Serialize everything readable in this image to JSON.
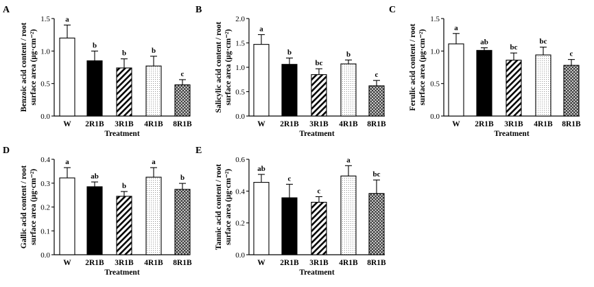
{
  "chart_data": [
    {
      "type": "bar",
      "panel": "A",
      "categories": [
        "W",
        "2R1B",
        "3R1B",
        "4R1B",
        "8R1B"
      ],
      "values": [
        1.2,
        0.85,
        0.74,
        0.77,
        0.48
      ],
      "errors": [
        0.2,
        0.15,
        0.14,
        0.15,
        0.08
      ],
      "significance": [
        "a",
        "b",
        "b",
        "b",
        "c"
      ],
      "ylabel_line1": "Benzoic acid content / root",
      "ylabel_line2": "surface area (µg·cm⁻²)",
      "xlabel": "Treatment",
      "ylim": [
        0,
        1.5
      ],
      "yticks": [
        "0.0",
        "0.5",
        "1.0",
        "1.5"
      ]
    },
    {
      "type": "bar",
      "panel": "B",
      "categories": [
        "W",
        "2R1B",
        "3R1B",
        "4R1B",
        "8R1B"
      ],
      "values": [
        1.47,
        1.06,
        0.85,
        1.07,
        0.62
      ],
      "errors": [
        0.2,
        0.13,
        0.12,
        0.08,
        0.11
      ],
      "significance": [
        "a",
        "b",
        "bc",
        "b",
        "c"
      ],
      "ylabel_line1": "Salicylic acid content / root",
      "ylabel_line2": "surface area (µg·cm⁻²)",
      "xlabel": "Treatment",
      "ylim": [
        0,
        2.0
      ],
      "yticks": [
        "0.0",
        "0.5",
        "1.0",
        "1.5",
        "2.0"
      ]
    },
    {
      "type": "bar",
      "panel": "C",
      "categories": [
        "W",
        "2R1B",
        "3R1B",
        "4R1B",
        "8R1B"
      ],
      "values": [
        1.11,
        1.01,
        0.86,
        0.94,
        0.78
      ],
      "errors": [
        0.16,
        0.04,
        0.11,
        0.12,
        0.09
      ],
      "significance": [
        "a",
        "ab",
        "bc",
        "bc",
        "c"
      ],
      "ylabel_line1": "Ferulic acid content / root",
      "ylabel_line2": "surface area (µg·cm⁻²)",
      "xlabel": "Treatment",
      "ylim": [
        0,
        1.5
      ],
      "yticks": [
        "0.0",
        "0.5",
        "1.0",
        "1.5"
      ]
    },
    {
      "type": "bar",
      "panel": "D",
      "categories": [
        "W",
        "2R1B",
        "3R1B",
        "4R1B",
        "8R1B"
      ],
      "values": [
        0.322,
        0.285,
        0.245,
        0.325,
        0.274
      ],
      "errors": [
        0.043,
        0.02,
        0.02,
        0.04,
        0.025
      ],
      "significance": [
        "a",
        "ab",
        "b",
        "a",
        "b"
      ],
      "ylabel_line1": "Gallic acid content / root",
      "ylabel_line2": "surface area (µg·cm⁻²)",
      "xlabel": "Treatment",
      "ylim": [
        0,
        0.4
      ],
      "yticks": [
        "0.0",
        "0.1",
        "0.2",
        "0.3",
        "0.4"
      ]
    },
    {
      "type": "bar",
      "panel": "E",
      "categories": [
        "W",
        "2R1B",
        "3R1B",
        "4R1B",
        "8R1B"
      ],
      "values": [
        0.455,
        0.358,
        0.33,
        0.495,
        0.385
      ],
      "errors": [
        0.05,
        0.085,
        0.035,
        0.065,
        0.085
      ],
      "significance": [
        "ab",
        "c",
        "c",
        "a",
        "bc"
      ],
      "ylabel_line1": "Tannic acid content / root",
      "ylabel_line2": "surface area (µg·cm⁻²)",
      "xlabel": "Treatment",
      "ylim": [
        0,
        0.6
      ],
      "yticks": [
        "0.0",
        "0.2",
        "0.4",
        "0.6"
      ]
    }
  ]
}
